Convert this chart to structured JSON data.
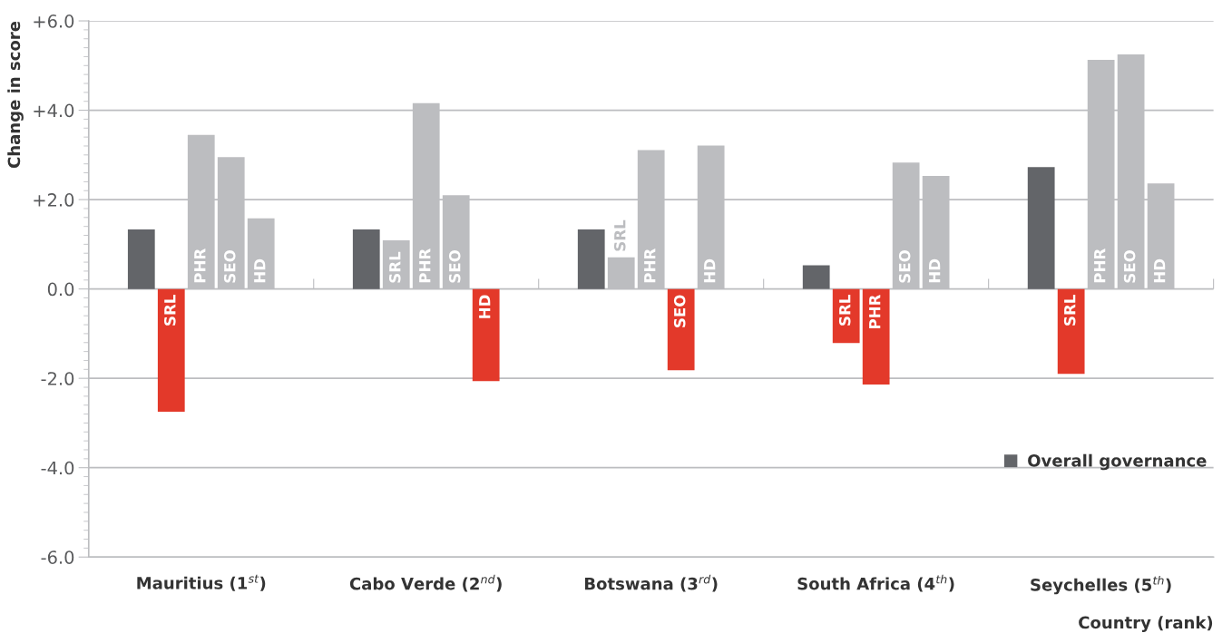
{
  "chart_data": {
    "type": "bar",
    "categories": [
      "Mauritius (1$^{st}$)",
      "Cabo Verde (2$^{nd}$)",
      "Botswana (3$^{rd}$)",
      "South Africa (4$^{th}$)",
      "Seychelles (5$^{th}$)"
    ],
    "series": [
      {
        "name": "Overall governance",
        "color": "#636569",
        "values": [
          1.33,
          1.33,
          1.33,
          0.53,
          2.73
        ]
      },
      {
        "name": "SRL",
        "colors": [
          "#e3392a",
          "#bcbdc0",
          "#bcbdc0",
          "#e3392a",
          "#e3392a"
        ],
        "values": [
          -2.75,
          1.09,
          0.71,
          -1.21,
          -1.9
        ]
      },
      {
        "name": "PHR",
        "colors": [
          "#bcbdc0",
          "#bcbdc0",
          "#bcbdc0",
          "#e3392a",
          "#bcbdc0"
        ],
        "values": [
          3.45,
          4.16,
          3.11,
          -2.14,
          5.13
        ]
      },
      {
        "name": "SEO",
        "colors": [
          "#bcbdc0",
          "#bcbdc0",
          "#e3392a",
          "#bcbdc0",
          "#bcbdc0"
        ],
        "values": [
          2.95,
          2.1,
          -1.82,
          2.83,
          5.25
        ]
      },
      {
        "name": "HD",
        "colors": [
          "#bcbdc0",
          "#e3392a",
          "#bcbdc0",
          "#bcbdc0",
          "#bcbdc0"
        ],
        "values": [
          1.58,
          -2.06,
          3.21,
          2.53,
          2.36
        ]
      }
    ],
    "xlabel": "Country (rank)",
    "ylabel": "Change in score",
    "ylim": [
      -6,
      6
    ],
    "yticks": [
      {
        "value": -6,
        "label": "-6.0"
      },
      {
        "value": -4,
        "label": "-4.0"
      },
      {
        "value": -2,
        "label": "-2.0"
      },
      {
        "value": 0,
        "label": "0.0"
      },
      {
        "value": 2,
        "label": "+2.0"
      },
      {
        "value": 4,
        "label": "+4.0"
      },
      {
        "value": 6,
        "label": "+6.0"
      }
    ],
    "grid": "y",
    "legend": "bottom right"
  }
}
